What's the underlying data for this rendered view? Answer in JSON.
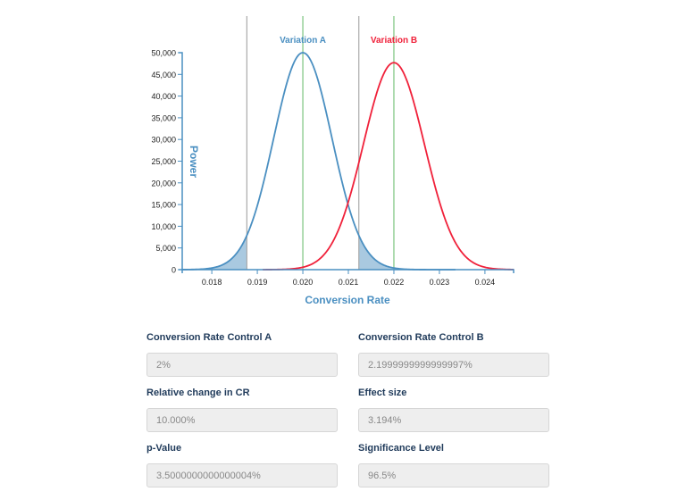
{
  "chart_data": {
    "type": "line",
    "title": "",
    "xlabel": "Conversion Rate",
    "ylabel": "Power",
    "xlim": [
      0.01735,
      0.02463
    ],
    "ylim": [
      0,
      50000
    ],
    "x_ticks": [
      "0.018",
      "0.019",
      "0.020",
      "0.021",
      "0.022",
      "0.023",
      "0.024"
    ],
    "x_tick_values": [
      0.018,
      0.019,
      0.02,
      0.021,
      0.022,
      0.023,
      0.024
    ],
    "y_ticks": [
      "0",
      "5,000",
      "10,000",
      "15,000",
      "20,000",
      "25,000",
      "30,000",
      "35,000",
      "40,000",
      "45,000",
      "50,000"
    ],
    "y_tick_values": [
      0,
      5000,
      10000,
      15000,
      20000,
      25000,
      30000,
      35000,
      40000,
      45000,
      50000
    ],
    "grid": false,
    "legend": "inline labels above curves",
    "series": [
      {
        "name": "Variation A",
        "color": "#4a8fc1",
        "distribution": "normal",
        "mean": 0.02,
        "sd": 0.00064,
        "peak": 50000
      },
      {
        "name": "Variation B",
        "color": "#f0213a",
        "distribution": "normal",
        "mean": 0.022,
        "sd": 0.00067,
        "peak": 47700
      }
    ],
    "vertical_lines": [
      {
        "x": 0.01877,
        "color": "#aaaaaa",
        "role": "lower critical value"
      },
      {
        "x": 0.02,
        "color": "#7cc47f",
        "role": "mean A"
      },
      {
        "x": 0.02123,
        "color": "#aaaaaa",
        "role": "upper critical value"
      },
      {
        "x": 0.022,
        "color": "#7cc47f",
        "role": "mean B"
      }
    ],
    "shaded_regions": [
      {
        "series": "Variation A",
        "from": 0.01735,
        "to": 0.01877,
        "color": "#a9c9e0"
      },
      {
        "series": "Variation A",
        "from": 0.02123,
        "to": 0.02463,
        "color": "#a9c9e0"
      }
    ]
  },
  "colors": {
    "axis": "#4a8fc1",
    "variation_a": "#4a8fc1",
    "variation_b": "#f0213a",
    "mean_line": "#7cc47f",
    "critical_line": "#aaaaaa",
    "shade": "#a9c9e0"
  },
  "form": {
    "fields": [
      {
        "label": "Conversion Rate Control A",
        "value": "2%"
      },
      {
        "label": "Conversion Rate Control B",
        "value": "2.1999999999999997%"
      },
      {
        "label": "Relative change in CR",
        "value": "10.000%"
      },
      {
        "label": "Effect size",
        "value": "3.194%"
      },
      {
        "label": "p-Value",
        "value": "3.5000000000000004%"
      },
      {
        "label": "Significance Level",
        "value": "96.5%"
      }
    ]
  }
}
